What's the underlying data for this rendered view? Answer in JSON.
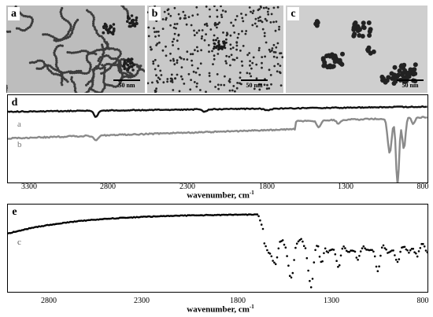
{
  "tem_panels": [
    {
      "letter": "a",
      "scale_label": "50 nm"
    },
    {
      "letter": "b",
      "scale_label": "50 nm"
    },
    {
      "letter": "c",
      "scale_label": "50 nm"
    }
  ],
  "ir_d": {
    "letter": "d",
    "trace_labels": [
      "a",
      "b"
    ],
    "x_ticks": [
      "3300",
      "2800",
      "2300",
      "1800",
      "1300",
      "800"
    ],
    "x_title": "wavenumber, cm",
    "x_title_sup": "-1"
  },
  "ir_e": {
    "letter": "e",
    "trace_labels": [
      "c"
    ],
    "x_ticks": [
      "2800",
      "2300",
      "1800",
      "1300",
      "800"
    ],
    "x_title": "wavenumber, cm",
    "x_title_sup": "-1"
  },
  "colors": {
    "trace_a": "#111111",
    "trace_b": "#8a8a8a",
    "trace_c": "#000000",
    "tem_bg": "#bdbdbd"
  }
}
